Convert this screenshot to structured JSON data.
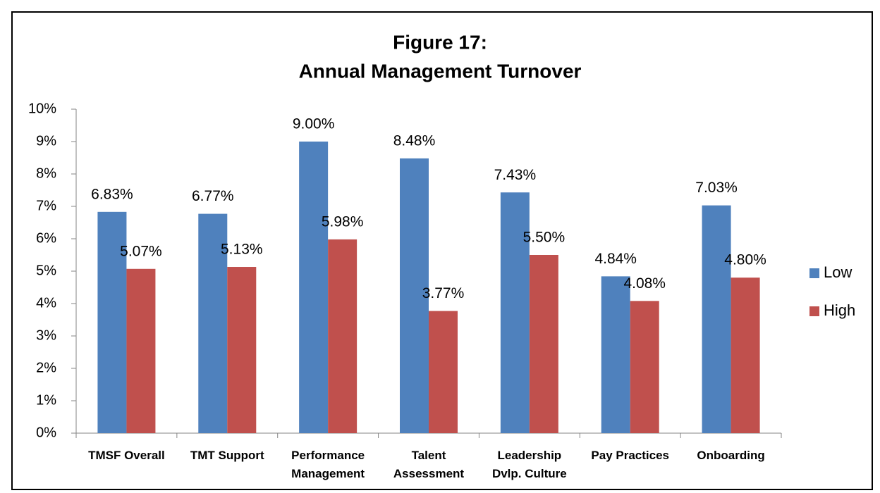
{
  "chart_data": {
    "type": "bar",
    "title": [
      "Figure 17:",
      "Annual Management Turnover"
    ],
    "categories": [
      [
        "TMSF Overall"
      ],
      [
        "TMT Support"
      ],
      [
        "Performance",
        "Management"
      ],
      [
        "Talent",
        "Assessment"
      ],
      [
        "Leadership",
        "Dvlp. Culture"
      ],
      [
        "Pay Practices"
      ],
      [
        "Onboarding"
      ]
    ],
    "series": [
      {
        "name": "Low",
        "color": "#4f81bd",
        "values": [
          6.83,
          6.77,
          9.0,
          8.48,
          7.43,
          4.84,
          7.03
        ],
        "value_labels": [
          "6.83%",
          "6.77%",
          "9.00%",
          "8.48%",
          "7.43%",
          "4.84%",
          "7.03%"
        ]
      },
      {
        "name": "High",
        "color": "#c0504d",
        "values": [
          5.07,
          5.13,
          5.98,
          3.77,
          5.5,
          4.08,
          4.8
        ],
        "value_labels": [
          "5.07%",
          "5.13%",
          "5.98%",
          "3.77%",
          "5.50%",
          "4.08%",
          "4.80%"
        ]
      }
    ],
    "ylim": [
      0,
      10
    ],
    "yticks": [
      {
        "value": 0,
        "label": "0%"
      },
      {
        "value": 1,
        "label": "1%"
      },
      {
        "value": 2,
        "label": "2%"
      },
      {
        "value": 3,
        "label": "3%"
      },
      {
        "value": 4,
        "label": "4%"
      },
      {
        "value": 5,
        "label": "5%"
      },
      {
        "value": 6,
        "label": "6%"
      },
      {
        "value": 7,
        "label": "7%"
      },
      {
        "value": 8,
        "label": "8%"
      },
      {
        "value": 9,
        "label": "9%"
      },
      {
        "value": 10,
        "label": "10%"
      }
    ],
    "grid": false,
    "legend": "right"
  }
}
